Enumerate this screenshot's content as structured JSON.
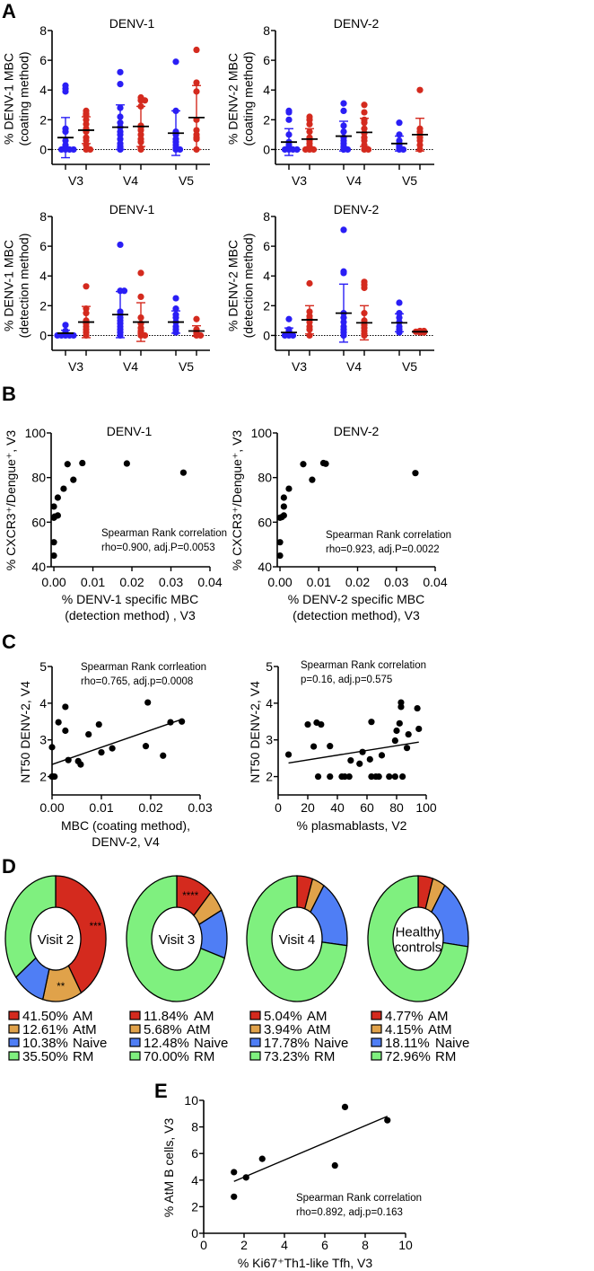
{
  "panel_letters": [
    "A",
    "B",
    "C",
    "D",
    "E"
  ],
  "colors": {
    "blue": "#2a1ef5",
    "red": "#d42a1e",
    "AM": "#d42a1e",
    "AtM": "#e0a24a",
    "Naive": "#4f7ef5",
    "RM": "#7ff07f"
  },
  "chart_data": [
    {
      "id": "A1",
      "type": "scatter",
      "title": "DENV-1",
      "ylabel": [
        "% DENV-1 MBC",
        "(coating method)"
      ],
      "ylim": [
        -1,
        8
      ],
      "yticks": [
        0,
        2,
        4,
        6,
        8
      ],
      "categories": [
        "V3",
        "V4",
        "V5"
      ],
      "groups": [
        {
          "visit": "V3",
          "color": "blue",
          "mean": 0.8,
          "sd": 1.35,
          "points": [
            4.3,
            4.1,
            3.9,
            1.4,
            1.2,
            0.6,
            0.3,
            0.2,
            0.1,
            0,
            0,
            0,
            0
          ]
        },
        {
          "visit": "V3",
          "color": "red",
          "mean": 1.3,
          "sd": 0.9,
          "points": [
            2.6,
            2.4,
            2.3,
            2.0,
            1.7,
            1.4,
            1.2,
            0.8,
            0.6,
            0.3,
            0,
            0
          ]
        },
        {
          "visit": "V4",
          "color": "blue",
          "mean": 1.5,
          "sd": 1.5,
          "points": [
            5.2,
            4.4,
            2.8,
            2.2,
            1.8,
            1.5,
            1.2,
            1.0,
            0.7,
            0.4,
            0.2,
            0.1,
            0
          ]
        },
        {
          "visit": "V4",
          "color": "red",
          "mean": 1.55,
          "sd": 1.35,
          "points": [
            3.5,
            3.3,
            3.3,
            2.9,
            1.6,
            1.5,
            1.3,
            1.0,
            0.7,
            0.5,
            0.1,
            0
          ]
        },
        {
          "visit": "V5",
          "color": "blue",
          "mean": 1.1,
          "sd": 1.5,
          "points": [
            5.9,
            2.6,
            1.2,
            1.0,
            0.7,
            0.5,
            0.3,
            0.1,
            0,
            0
          ]
        },
        {
          "visit": "V5",
          "color": "red",
          "mean": 2.15,
          "sd": 2.15,
          "points": [
            6.7,
            4.5,
            3.9,
            2.0,
            1.3,
            1.0,
            0.8,
            0.7,
            0
          ]
        }
      ]
    },
    {
      "id": "A2",
      "type": "scatter",
      "title": "DENV-2",
      "ylabel": [
        "% DENV-2 MBC",
        "(coating method)"
      ],
      "ylim": [
        -1,
        8
      ],
      "yticks": [
        0,
        2,
        4,
        6,
        8
      ],
      "categories": [
        "V3",
        "V4",
        "V5"
      ],
      "groups": [
        {
          "visit": "V3",
          "color": "blue",
          "mean": 0.5,
          "sd": 0.9,
          "points": [
            2.6,
            2.5,
            2.0,
            1.0,
            0.5,
            0.3,
            0.2,
            0.1,
            0,
            0,
            0,
            0
          ]
        },
        {
          "visit": "V3",
          "color": "red",
          "mean": 0.7,
          "sd": 0.7,
          "points": [
            2.2,
            2.0,
            1.7,
            1.2,
            0.8,
            0.6,
            0.4,
            0.2,
            0.1,
            0,
            0,
            0
          ]
        },
        {
          "visit": "V4",
          "color": "blue",
          "mean": 0.9,
          "sd": 1.0,
          "points": [
            3.1,
            2.6,
            1.6,
            1.2,
            0.8,
            0.6,
            0.4,
            0.2,
            0.1,
            0,
            0
          ]
        },
        {
          "visit": "V4",
          "color": "red",
          "mean": 1.15,
          "sd": 0.95,
          "points": [
            3.0,
            2.5,
            2.0,
            1.8,
            1.4,
            1.1,
            0.8,
            0.6,
            0.3,
            0,
            0
          ]
        },
        {
          "visit": "V5",
          "color": "blue",
          "mean": 0.4,
          "sd": 0.5,
          "points": [
            1.8,
            1.0,
            0.6,
            0.4,
            0.3,
            0.2,
            0.1,
            0,
            0
          ]
        },
        {
          "visit": "V5",
          "color": "red",
          "mean": 1.0,
          "sd": 1.1,
          "points": [
            4.0,
            1.4,
            1.2,
            1.0,
            0.8,
            0.6,
            0.3,
            0
          ]
        }
      ]
    },
    {
      "id": "A3",
      "type": "scatter",
      "title": "DENV-1",
      "ylabel": [
        "% DENV-1 MBC",
        "(detection method)"
      ],
      "ylim": [
        -1,
        8
      ],
      "yticks": [
        0,
        2,
        4,
        6,
        8
      ],
      "categories": [
        "V3",
        "V4",
        "V5"
      ],
      "groups": [
        {
          "visit": "V3",
          "color": "blue",
          "mean": 0.15,
          "sd": 0.2,
          "points": [
            0.7,
            0.3,
            0.2,
            0.1,
            0,
            0,
            0,
            0,
            0
          ]
        },
        {
          "visit": "V3",
          "color": "red",
          "mean": 0.9,
          "sd": 1.05,
          "points": [
            3.3,
            1.8,
            1.5,
            1.0,
            0.8,
            0.6,
            0.4,
            0.2,
            0
          ]
        },
        {
          "visit": "V4",
          "color": "blue",
          "mean": 1.4,
          "sd": 1.55,
          "points": [
            6.1,
            3.0,
            3.0,
            1.6,
            1.4,
            1.2,
            1.0,
            0.8,
            0.6,
            0.4,
            0.2,
            0
          ]
        },
        {
          "visit": "V4",
          "color": "red",
          "mean": 0.9,
          "sd": 1.3,
          "points": [
            4.2,
            2.6,
            1.2,
            0.8,
            0.5,
            0.3,
            0.2,
            0.1,
            0,
            0
          ]
        },
        {
          "visit": "V5",
          "color": "blue",
          "mean": 0.9,
          "sd": 0.75,
          "points": [
            2.5,
            1.8,
            1.4,
            1.2,
            0.9,
            0.6,
            0.4,
            0.2
          ]
        },
        {
          "visit": "V5",
          "color": "red",
          "mean": 0.3,
          "sd": 0.35,
          "points": [
            1.1,
            0.4,
            0.3,
            0.2,
            0.1,
            0,
            0
          ]
        }
      ]
    },
    {
      "id": "A4",
      "type": "scatter",
      "title": "DENV-2",
      "ylabel": [
        "% DENV-2 MBC",
        "(detection method)"
      ],
      "ylim": [
        -1,
        8
      ],
      "yticks": [
        0,
        2,
        4,
        6,
        8
      ],
      "categories": [
        "V3",
        "V4",
        "V5"
      ],
      "groups": [
        {
          "visit": "V3",
          "color": "blue",
          "mean": 0.2,
          "sd": 0.3,
          "points": [
            1.1,
            0.4,
            0.3,
            0.2,
            0.1,
            0,
            0,
            0
          ]
        },
        {
          "visit": "V3",
          "color": "red",
          "mean": 1.05,
          "sd": 0.95,
          "points": [
            3.5,
            1.6,
            1.3,
            1.1,
            0.9,
            0.6,
            0.4,
            0
          ]
        },
        {
          "visit": "V4",
          "color": "blue",
          "mean": 1.5,
          "sd": 1.95,
          "points": [
            7.1,
            4.3,
            4.2,
            1.5,
            1.2,
            0.9,
            0.6,
            0.4,
            0.2,
            0
          ]
        },
        {
          "visit": "V4",
          "color": "red",
          "mean": 0.85,
          "sd": 1.15,
          "points": [
            3.6,
            3.4,
            3.2,
            1.5,
            1.0,
            0.7,
            0.5,
            0.3,
            0.1,
            0
          ]
        },
        {
          "visit": "V5",
          "color": "blue",
          "mean": 0.85,
          "sd": 0.6,
          "points": [
            2.2,
            1.5,
            1.2,
            0.9,
            0.6,
            0.4,
            0.2
          ]
        },
        {
          "visit": "V5",
          "color": "red",
          "mean": 0.25,
          "sd": 0.05,
          "points": [
            0.3,
            0.3,
            0.25,
            0.2,
            0.2
          ]
        }
      ]
    },
    {
      "id": "B1",
      "type": "scatter",
      "title": "DENV-1",
      "xlabel": [
        "% DENV-1 specific MBC",
        "(detection method) , V3"
      ],
      "ylabel": [
        "% CXCR3⁺/Dengue⁺, V3"
      ],
      "xlim": [
        -0.0007,
        0.04
      ],
      "ylim": [
        40,
        100
      ],
      "xticks": [
        "0.00",
        "0.01",
        "0.02",
        "0.03",
        "0.04"
      ],
      "yticks": [
        40,
        60,
        80,
        100
      ],
      "annotation": [
        "Spearman Rank correlation",
        "rho=0.900, adj.P=0.0053"
      ],
      "points": [
        [
          0,
          67
        ],
        [
          0,
          62
        ],
        [
          0,
          51
        ],
        [
          0,
          45
        ],
        [
          0.0002,
          62.5
        ],
        [
          0.001,
          71
        ],
        [
          0.001,
          63
        ],
        [
          0.0025,
          75
        ],
        [
          0.0035,
          86
        ],
        [
          0.005,
          79
        ],
        [
          0.0073,
          86.5
        ],
        [
          0.0187,
          86.3
        ],
        [
          0.0332,
          82.2
        ]
      ]
    },
    {
      "id": "B2",
      "type": "scatter",
      "title": "DENV-2",
      "xlabel": [
        "% DENV-2 specific MBC",
        "(detection method), V3"
      ],
      "ylabel": [
        "% CXCR3⁺/Dengue⁺, V3"
      ],
      "xlim": [
        -0.0007,
        0.04
      ],
      "ylim": [
        40,
        100
      ],
      "xticks": [
        "0.00",
        "0.01",
        "0.02",
        "0.03",
        "0.04"
      ],
      "yticks": [
        40,
        60,
        80,
        100
      ],
      "annotation": [
        "Spearman Rank correlation",
        "rho=0.923, adj.P=0.0022"
      ],
      "points": [
        [
          0,
          62
        ],
        [
          0,
          51
        ],
        [
          0,
          45
        ],
        [
          0.0005,
          62.3
        ],
        [
          0.001,
          71
        ],
        [
          0.001,
          67
        ],
        [
          0.001,
          63
        ],
        [
          0.0023,
          75
        ],
        [
          0.006,
          86
        ],
        [
          0.0083,
          79
        ],
        [
          0.0112,
          86.5
        ],
        [
          0.0118,
          86.2
        ],
        [
          0.0349,
          82
        ]
      ]
    },
    {
      "id": "C1",
      "type": "scatter",
      "xlabel": [
        "MBC (coating method),",
        "DENV-2, V4"
      ],
      "ylabel": [
        "NT50 DENV-2, V4"
      ],
      "xlim": [
        0,
        0.03
      ],
      "ylim": [
        1.5,
        5
      ],
      "xticks": [
        "0.00",
        "0.01",
        "0.02",
        "0.03"
      ],
      "yticks": [
        2,
        3,
        4,
        5
      ],
      "annotation": [
        "Spearman Rank corrleation",
        "rho=0.765, adj.p=0.0008"
      ],
      "fit": [
        [
          0,
          2.33
        ],
        [
          0.0265,
          3.57
        ]
      ],
      "points": [
        [
          0,
          2.8
        ],
        [
          0,
          2
        ],
        [
          0.0002,
          2
        ],
        [
          0.0005,
          2
        ],
        [
          0.0013,
          3.48
        ],
        [
          0.0027,
          3.9
        ],
        [
          0.0027,
          3.25
        ],
        [
          0.0033,
          2.45
        ],
        [
          0.0053,
          2.42
        ],
        [
          0.0058,
          2.33
        ],
        [
          0.0074,
          3.15
        ],
        [
          0.0095,
          3.42
        ],
        [
          0.01,
          2.66
        ],
        [
          0.0122,
          2.77
        ],
        [
          0.019,
          2.83
        ],
        [
          0.0194,
          4.02
        ],
        [
          0.0225,
          2.57
        ],
        [
          0.024,
          3.48
        ],
        [
          0.0263,
          3.5
        ]
      ]
    },
    {
      "id": "C2",
      "type": "scatter",
      "xlabel": [
        "% plasmablasts, V2"
      ],
      "ylabel": [
        "NT50 DENV-2, V4"
      ],
      "xlim": [
        0,
        100
      ],
      "ylim": [
        1.5,
        5
      ],
      "xticks": [
        "0",
        "20",
        "40",
        "60",
        "80",
        "100"
      ],
      "yticks": [
        2,
        3,
        4,
        5
      ],
      "annotation": [
        "Spearman Rank correlation",
        "p=0.16, adj.p=0.575"
      ],
      "fit": [
        [
          7,
          2.37
        ],
        [
          95,
          2.94
        ]
      ],
      "points": [
        [
          7,
          2.6
        ],
        [
          20,
          3.42
        ],
        [
          24,
          2.82
        ],
        [
          26,
          3.47
        ],
        [
          27,
          2
        ],
        [
          29,
          3.42
        ],
        [
          35,
          2.83
        ],
        [
          35,
          2
        ],
        [
          43,
          2
        ],
        [
          45,
          2
        ],
        [
          48,
          2
        ],
        [
          49,
          2.44
        ],
        [
          55,
          2.35
        ],
        [
          57,
          2.67
        ],
        [
          62,
          2.47
        ],
        [
          63,
          3.49
        ],
        [
          63,
          2
        ],
        [
          66,
          2
        ],
        [
          68,
          2
        ],
        [
          70,
          2.58
        ],
        [
          75,
          2
        ],
        [
          79,
          2
        ],
        [
          79,
          2.98
        ],
        [
          80,
          3.25
        ],
        [
          82,
          3.45
        ],
        [
          83,
          4.02
        ],
        [
          83,
          3.9
        ],
        [
          84,
          2
        ],
        [
          87,
          2.78
        ],
        [
          88,
          3.15
        ],
        [
          94,
          3.86
        ],
        [
          95,
          3.3
        ]
      ]
    },
    {
      "id": "D",
      "type": "pie",
      "categories": [
        "AM",
        "AtM",
        "Naive",
        "RM"
      ],
      "pies": [
        {
          "label": [
            "Visit 2"
          ],
          "values": [
            41.5,
            12.61,
            10.38,
            35.5
          ],
          "value_labels": [
            "41.50%",
            "12.61%",
            "10.38%",
            "35.50%"
          ],
          "stars": [
            "***",
            "**",
            "",
            ""
          ]
        },
        {
          "label": [
            "Visit 3"
          ],
          "values": [
            11.84,
            5.68,
            12.48,
            70.0
          ],
          "value_labels": [
            "11.84%",
            "5.68%",
            "12.48%",
            "70.00%"
          ],
          "stars": [
            "****",
            "",
            "",
            ""
          ]
        },
        {
          "label": [
            "Visit 4"
          ],
          "values": [
            5.04,
            3.94,
            17.78,
            73.23
          ],
          "value_labels": [
            "5.04%",
            "3.94%",
            "17.78%",
            "73.23%"
          ],
          "stars": [
            "",
            "",
            "",
            ""
          ]
        },
        {
          "label": [
            "Healthy",
            "controls"
          ],
          "values": [
            4.77,
            4.15,
            18.11,
            72.96
          ],
          "value_labels": [
            "4.77%",
            "4.15%",
            "18.11%",
            "72.96%"
          ],
          "stars": [
            "",
            "",
            "",
            ""
          ]
        }
      ]
    },
    {
      "id": "E",
      "type": "scatter",
      "xlabel": [
        "% Ki67⁺Th1-like Tfh, V3"
      ],
      "ylabel": [
        "% AtM B cells, V3"
      ],
      "xlim": [
        0,
        10
      ],
      "ylim": [
        0,
        10
      ],
      "xticks": [
        "0",
        "2",
        "4",
        "6",
        "8",
        "10"
      ],
      "yticks": [
        0,
        2,
        4,
        6,
        8,
        10
      ],
      "annotation": [
        "Spearman Rank correlation",
        "rho=0.892, adj.p=0.163"
      ],
      "fit": [
        [
          1.5,
          3.9
        ],
        [
          9.1,
          8.8
        ]
      ],
      "points": [
        [
          1.5,
          4.6
        ],
        [
          1.5,
          2.75
        ],
        [
          2.1,
          4.2
        ],
        [
          2.9,
          5.6
        ],
        [
          6.5,
          5.1
        ],
        [
          7,
          9.5
        ],
        [
          9.1,
          8.5
        ]
      ]
    }
  ]
}
